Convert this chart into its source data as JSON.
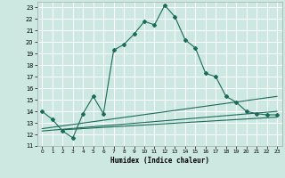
{
  "xlabel": "Humidex (Indice chaleur)",
  "bg_color": "#cce8e0",
  "line_color": "#1a6b5a",
  "grid_color": "#ffffff",
  "xlim": [
    -0.5,
    23.5
  ],
  "ylim": [
    11,
    23.5
  ],
  "yticks": [
    11,
    12,
    13,
    14,
    15,
    16,
    17,
    18,
    19,
    20,
    21,
    22,
    23
  ],
  "xticks": [
    0,
    1,
    2,
    3,
    4,
    5,
    6,
    7,
    8,
    9,
    10,
    11,
    12,
    13,
    14,
    15,
    16,
    17,
    18,
    19,
    20,
    21,
    22,
    23
  ],
  "main_line": {
    "x": [
      0,
      1,
      2,
      3,
      4,
      5,
      6,
      7,
      8,
      9,
      10,
      11,
      12,
      13,
      14,
      15,
      16,
      17,
      18,
      19,
      20,
      21,
      22,
      23
    ],
    "y": [
      14.0,
      13.3,
      12.3,
      11.7,
      13.8,
      15.3,
      13.8,
      19.3,
      19.8,
      20.7,
      21.8,
      21.5,
      23.2,
      22.2,
      20.2,
      19.5,
      17.3,
      17.0,
      15.3,
      14.8,
      14.0,
      13.8,
      13.7,
      13.7
    ]
  },
  "flat_line1": {
    "x": [
      0,
      23
    ],
    "y": [
      12.5,
      15.3
    ]
  },
  "flat_line2": {
    "x": [
      0,
      23
    ],
    "y": [
      12.3,
      14.0
    ]
  },
  "flat_line3": {
    "x": [
      2,
      23
    ],
    "y": [
      12.4,
      13.5
    ]
  }
}
